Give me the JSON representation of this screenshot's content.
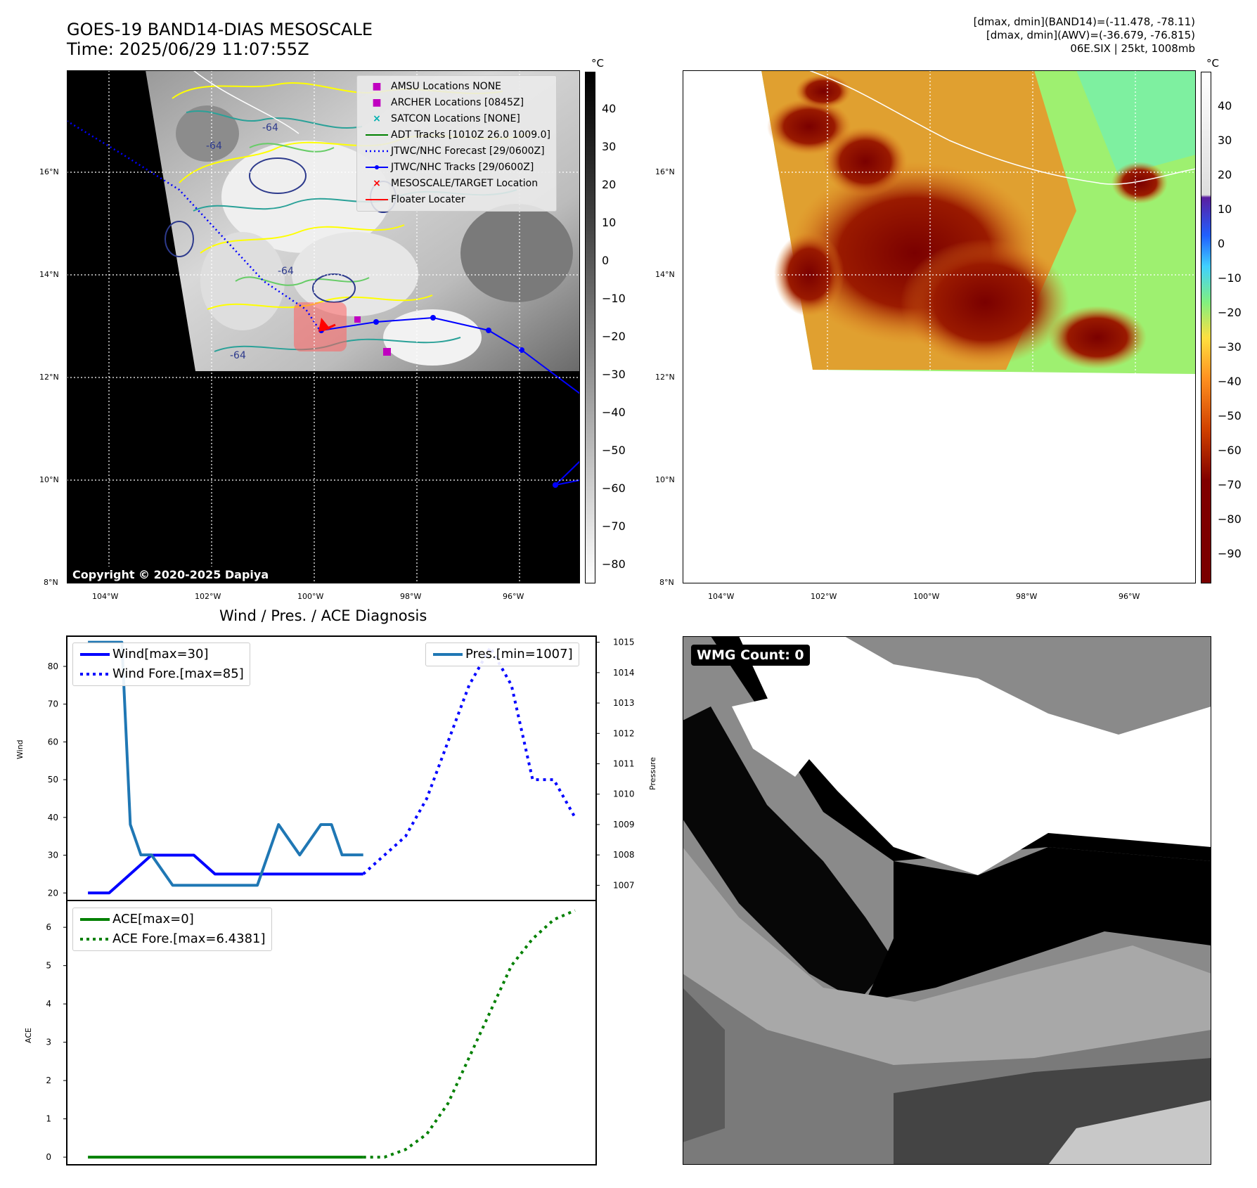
{
  "header": {
    "title_line1": "GOES-19 BAND14-DIAS MESOSCALE",
    "title_line2": "Time: 2025/06/29 11:07:55Z",
    "stats_line1": "[dmax, dmin](BAND14)=(-11.478, -78.11)",
    "stats_line2": "[dmax, dmin](AWV)=(-36.679, -76.815)",
    "stats_line3": "06E.SIX | 25kt, 1008mb"
  },
  "map": {
    "lat_labels": [
      "16°N",
      "14°N",
      "12°N",
      "10°N",
      "8°N"
    ],
    "lon_labels": [
      "104°W",
      "102°W",
      "100°W",
      "98°W",
      "96°W"
    ],
    "copyright": "Copyright © 2020-2025 Dapiya",
    "contour_label": "-64"
  },
  "legend_map": [
    {
      "label": "AMSU Locations NONE",
      "symbol": "■",
      "color": "#c000c0"
    },
    {
      "label": "ARCHER Locations [0845Z]",
      "symbol": "■",
      "color": "#c000c0"
    },
    {
      "label": "SATCON Locations [NONE]",
      "symbol": "×",
      "color": "#00b0b0"
    },
    {
      "label": "ADT Tracks [1010Z 26.0 1009.0]",
      "symbol": "line",
      "color": "#008000"
    },
    {
      "label": "JTWC/NHC Forecast [29/0600Z]",
      "symbol": "dots",
      "color": "#0000ff"
    },
    {
      "label": "JTWC/NHC Tracks [29/0600Z]",
      "symbol": "line-dot",
      "color": "#0000ff"
    },
    {
      "label": "MESOSCALE/TARGET Location",
      "symbol": "×",
      "color": "#ff0000"
    },
    {
      "label": "Floater Locater",
      "symbol": "line",
      "color": "#ff0000"
    }
  ],
  "colorbar_left": {
    "unit": "°C",
    "ticks": [
      "40",
      "30",
      "20",
      "10",
      "0",
      "−10",
      "−20",
      "−30",
      "−40",
      "−50",
      "−60",
      "−70",
      "−80"
    ]
  },
  "colorbar_right": {
    "unit": "°C",
    "ticks": [
      "40",
      "30",
      "20",
      "10",
      "0",
      "−10",
      "−20",
      "−30",
      "−40",
      "−50",
      "−60",
      "−70",
      "−80",
      "−90"
    ]
  },
  "diagnosis": {
    "title": "Wind / Pres. / ACE Diagnosis",
    "wind_axis_label": "Wind",
    "pressure_axis_label": "Pressure",
    "ace_axis_label": "ACE",
    "legend_wind": "Wind[max=30]",
    "legend_wind_fore": "Wind Fore.[max=85]",
    "legend_pres": "Pres.[min=1007]",
    "legend_ace": "ACE[max=0]",
    "legend_ace_fore": "ACE Fore.[max=6.4381]"
  },
  "wmg": {
    "label": "WMG Count: 0"
  },
  "chart_data": [
    {
      "type": "line",
      "panel": "wind-pressure",
      "ylim": [
        18,
        88
      ],
      "yticks": [
        20,
        30,
        40,
        50,
        60,
        70,
        80
      ],
      "y2lim": [
        1006.5,
        1015.2
      ],
      "y2ticks": [
        1007,
        1008,
        1009,
        1010,
        1011,
        1012,
        1013,
        1014,
        1015
      ],
      "series": [
        {
          "name": "Wind[max=30]",
          "axis": "left",
          "style": "solid",
          "color": "#0000ff",
          "x": [
            0,
            1,
            2,
            3,
            4,
            5,
            6,
            7,
            8,
            9,
            10,
            11,
            12,
            13
          ],
          "values": [
            20,
            20,
            25,
            30,
            30,
            30,
            25,
            25,
            25,
            25,
            25,
            25,
            25,
            25
          ]
        },
        {
          "name": "Wind Fore.[max=85]",
          "axis": "left",
          "style": "dotted",
          "color": "#0000ff",
          "x": [
            13,
            14,
            15,
            16,
            17,
            18,
            19,
            20,
            21,
            22,
            23
          ],
          "values": [
            25,
            30,
            35,
            45,
            60,
            75,
            85,
            75,
            50,
            50,
            40
          ]
        },
        {
          "name": "Pres.[min=1007]",
          "axis": "right",
          "style": "solid",
          "color": "#1f77b4",
          "x": [
            0,
            1,
            1.6,
            2,
            2.5,
            3,
            4,
            5,
            6,
            7,
            8,
            9,
            10,
            11,
            11.5,
            12,
            12.5,
            13
          ],
          "values": [
            1015,
            1015,
            1015,
            1009,
            1008,
            1008,
            1007,
            1007,
            1007,
            1007,
            1007,
            1009,
            1008,
            1009,
            1009,
            1008,
            1008,
            1008
          ]
        }
      ]
    },
    {
      "type": "line",
      "panel": "ace",
      "ylim": [
        -0.2,
        6.7
      ],
      "yticks": [
        0,
        1,
        2,
        3,
        4,
        5,
        6
      ],
      "series": [
        {
          "name": "ACE[max=0]",
          "style": "solid",
          "color": "#008000",
          "x": [
            0,
            13
          ],
          "values": [
            0,
            0
          ]
        },
        {
          "name": "ACE Fore.[max=6.4381]",
          "style": "dotted",
          "color": "#008000",
          "x": [
            13,
            14,
            15,
            16,
            17,
            18,
            19,
            20,
            21,
            22,
            23
          ],
          "values": [
            0,
            0,
            0.2,
            0.6,
            1.4,
            2.6,
            3.8,
            5.0,
            5.7,
            6.2,
            6.44
          ]
        }
      ]
    }
  ]
}
